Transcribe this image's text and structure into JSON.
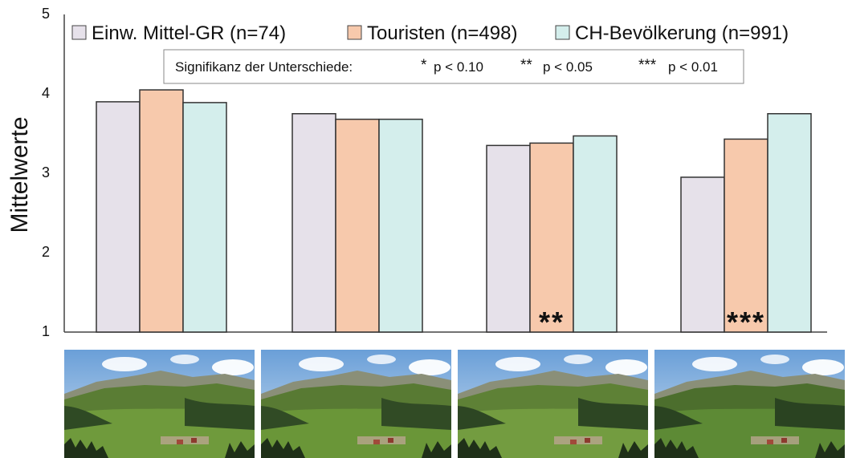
{
  "chart_data": {
    "type": "bar",
    "ylabel": "Mittelwerte",
    "ylim": [
      1,
      5
    ],
    "yticks": [
      "1",
      "2",
      "3",
      "4",
      "5"
    ],
    "grid": false,
    "legend_placement": "top",
    "series": [
      {
        "name": "Einw. Mittel-GR (n=74)",
        "color": "#e6e1ea",
        "values": [
          3.9,
          3.75,
          3.35,
          2.95
        ]
      },
      {
        "name": "Touristen (n=498)",
        "color": "#f7c9ac",
        "values": [
          4.05,
          3.68,
          3.38,
          3.43
        ]
      },
      {
        "name": "CH-Bevölkerung (n=991)",
        "color": "#d4eeec",
        "values": [
          3.89,
          3.68,
          3.47,
          3.75
        ]
      }
    ],
    "annotations": [
      {
        "group": 2,
        "series": 1,
        "text": "**"
      },
      {
        "group": 3,
        "series": 1,
        "text": "***"
      }
    ],
    "significance_box": {
      "title": "Signifikanz der Unterschiede:",
      "items": [
        {
          "stars": "*",
          "label": "p < 0.10"
        },
        {
          "stars": "**",
          "label": "p < 0.05"
        },
        {
          "stars": "***",
          "label": "p < 0.01"
        }
      ]
    }
  },
  "photos": [
    {
      "icon": "landscape-photo-icon",
      "scene": "valley-original"
    },
    {
      "icon": "landscape-photo-icon",
      "scene": "valley-variant-2"
    },
    {
      "icon": "landscape-photo-icon",
      "scene": "valley-variant-3"
    },
    {
      "icon": "landscape-photo-icon",
      "scene": "valley-variant-4"
    }
  ]
}
